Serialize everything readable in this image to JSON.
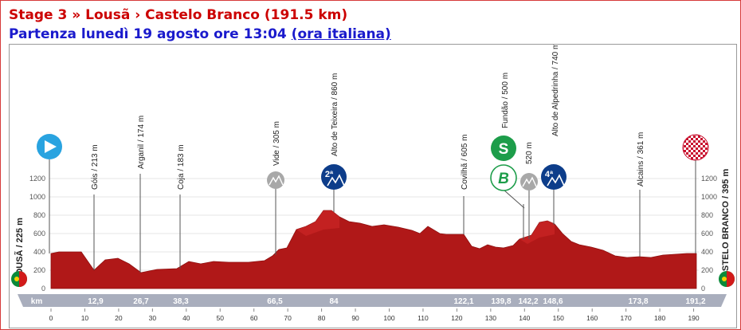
{
  "header": {
    "title": "Stage 3 » Lousã › Castelo Branco (191.5 km)",
    "start_prefix": "Partenza lunedì 19 agosto ore 13:04",
    "start_link": "(ora italiana)"
  },
  "profile": {
    "start_label": "LOUSÃ / 225 m",
    "finish_label": "CASTELO BRANCO / 395 m",
    "km_unit": "km",
    "y_ticks": [
      "1200",
      "1000",
      "800",
      "600",
      "400",
      "200",
      "0"
    ],
    "x_ticks": [
      "0",
      "10",
      "20",
      "30",
      "40",
      "50",
      "60",
      "70",
      "80",
      "90",
      "100",
      "110",
      "120",
      "130",
      "140",
      "150",
      "160",
      "170",
      "180",
      "190"
    ],
    "places": [
      {
        "name": "Góis / 213 m",
        "km": "12,9"
      },
      {
        "name": "Arganil / 174 m",
        "km": "26,7"
      },
      {
        "name": "Coja / 183 m",
        "km": "38,3"
      },
      {
        "name": "Vide / 305 m",
        "km": "66,5"
      },
      {
        "name": "Alto de Teixeira / 860 m",
        "km": "84"
      },
      {
        "name": "Covilhã / 605 m",
        "km": "122,1"
      },
      {
        "name": "Fundão / 500 m",
        "km": "139,8"
      },
      {
        "name": "520 m",
        "km": "142,2"
      },
      {
        "name": "Alto de Alpedrinha / 740 m",
        "km": "148,6"
      },
      {
        "name": "Alcains / 361 m",
        "km": "173,8"
      },
      {
        "name": "",
        "km": "191,2"
      }
    ],
    "badges": {
      "teixeira_category": "2ª",
      "alpedrinha_category": "4ª",
      "sprint": "S",
      "bonus": "B"
    },
    "colors": {
      "profile_fill": "#b01818",
      "profile_top": "#d42a2a",
      "start_marker": "#29a3e0",
      "sprint": "#1d9d4a",
      "climb": "#0d3d8a",
      "minor_climb": "#a8a8a8",
      "km_bar": "#a9aebd"
    }
  }
}
